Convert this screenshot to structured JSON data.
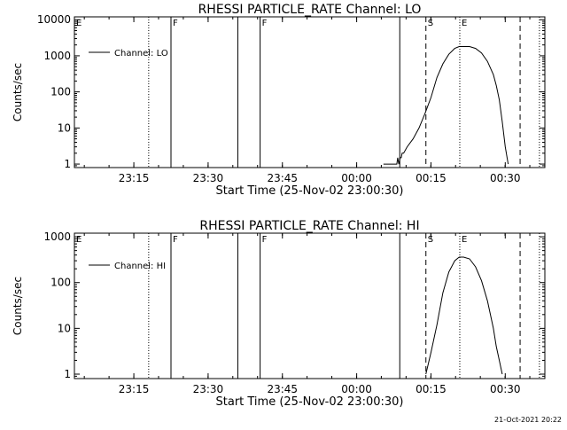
{
  "stamp": "21-Oct-2021 20:22",
  "chart_data": [
    {
      "type": "line",
      "title": "RHESSI PARTICLE_RATE Channel: LO",
      "xlabel": "Start Time (25-Nov-02 23:00:30)",
      "ylabel": "Counts/sec",
      "yscale": "log",
      "xlim": [
        23.05,
        24.6333
      ],
      "ylim": [
        0.8,
        12000
      ],
      "xticks": [
        23.25,
        23.5,
        23.75,
        24.0,
        24.25,
        24.5
      ],
      "xtick_labels": [
        "23:15",
        "23:30",
        "23:45",
        "00:00",
        "00:15",
        "00:30"
      ],
      "yticks": [
        1,
        10,
        100,
        1000,
        10000
      ],
      "ytick_labels": [
        "1",
        "10",
        "100",
        "1000",
        "10000"
      ],
      "legend": "Channel: LO",
      "legend_position": "top-left",
      "series": [
        {
          "name": "Channel: LO",
          "x": [
            24.09,
            24.135,
            24.138,
            24.142,
            24.146,
            24.15,
            24.153,
            24.158,
            24.17,
            24.19,
            24.21,
            24.23,
            24.25,
            24.27,
            24.29,
            24.31,
            24.33,
            24.345,
            24.36,
            24.38,
            24.4,
            24.42,
            24.44,
            24.46,
            24.47,
            24.48,
            24.49,
            24.5,
            24.51
          ],
          "y": [
            1,
            1,
            1.5,
            1,
            1.5,
            1.5,
            2,
            2,
            3,
            5,
            10,
            25,
            70,
            250,
            600,
            1100,
            1600,
            1800,
            1800,
            1800,
            1600,
            1200,
            700,
            300,
            150,
            60,
            15,
            3,
            1
          ]
        }
      ],
      "lines": [
        {
          "x": 23.3,
          "style": "dotted"
        },
        {
          "x": 23.375,
          "style": "solid"
        },
        {
          "x": 23.6,
          "style": "solid"
        },
        {
          "x": 23.675,
          "style": "solid"
        },
        {
          "x": 24.145,
          "style": "solid"
        },
        {
          "x": 24.233,
          "style": "dashed"
        },
        {
          "x": 24.347,
          "style": "dotted"
        },
        {
          "x": 24.55,
          "style": "dashed"
        },
        {
          "x": 24.615,
          "style": "dotted"
        }
      ],
      "markers": [
        {
          "x": 23.05,
          "text": "E"
        },
        {
          "x": 23.375,
          "text": "F"
        },
        {
          "x": 23.675,
          "text": "F"
        },
        {
          "x": 24.233,
          "text": "S"
        },
        {
          "x": 24.347,
          "text": "E"
        }
      ]
    },
    {
      "type": "line",
      "title": "RHESSI PARTICLE_RATE Channel: HI",
      "xlabel": "Start Time (25-Nov-02 23:00:30)",
      "ylabel": "Counts/sec",
      "yscale": "log",
      "xlim": [
        23.05,
        24.6333
      ],
      "ylim": [
        0.8,
        1200
      ],
      "xticks": [
        23.25,
        23.5,
        23.75,
        24.0,
        24.25,
        24.5
      ],
      "xtick_labels": [
        "23:15",
        "23:30",
        "23:45",
        "00:00",
        "00:15",
        "00:30"
      ],
      "yticks": [
        1,
        10,
        100,
        1000
      ],
      "ytick_labels": [
        "1",
        "10",
        "100",
        "1000"
      ],
      "legend": "Channel: HI",
      "legend_position": "top-left",
      "series": [
        {
          "name": "Channel: HI",
          "x": [
            24.233,
            24.25,
            24.27,
            24.29,
            24.31,
            24.33,
            24.345,
            24.36,
            24.38,
            24.4,
            24.42,
            24.44,
            24.46,
            24.47,
            24.48,
            24.49
          ],
          "y": [
            1,
            3,
            12,
            60,
            170,
            300,
            360,
            360,
            330,
            220,
            110,
            40,
            10,
            4,
            2,
            1
          ]
        }
      ],
      "lines": [
        {
          "x": 23.3,
          "style": "dotted"
        },
        {
          "x": 23.375,
          "style": "solid"
        },
        {
          "x": 23.6,
          "style": "solid"
        },
        {
          "x": 23.675,
          "style": "solid"
        },
        {
          "x": 24.145,
          "style": "solid"
        },
        {
          "x": 24.233,
          "style": "dashed"
        },
        {
          "x": 24.347,
          "style": "dotted"
        },
        {
          "x": 24.55,
          "style": "dashed"
        },
        {
          "x": 24.615,
          "style": "dotted"
        }
      ],
      "markers": [
        {
          "x": 23.05,
          "text": "E"
        },
        {
          "x": 23.375,
          "text": "F"
        },
        {
          "x": 23.675,
          "text": "F"
        },
        {
          "x": 24.233,
          "text": "S"
        },
        {
          "x": 24.347,
          "text": "E"
        }
      ]
    }
  ]
}
